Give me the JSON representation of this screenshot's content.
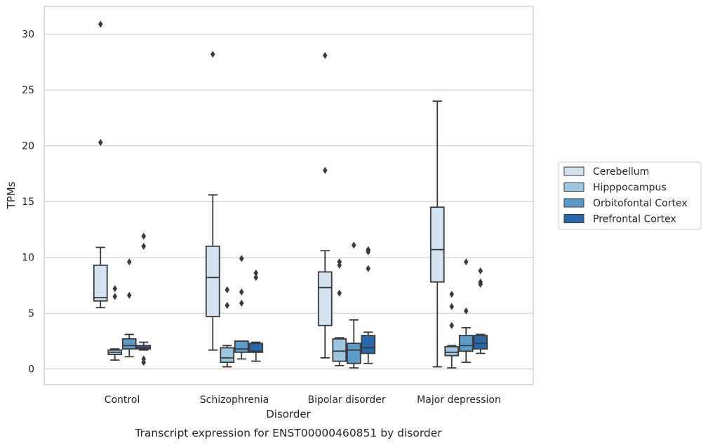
{
  "chart_data": {
    "type": "box",
    "xlabel": "Disorder",
    "ylabel": "TPMs",
    "caption": "Transcript expression for ENST00000460851 by disorder",
    "ylim": [
      -1.4,
      32.5
    ],
    "yticks": [
      0,
      5,
      10,
      15,
      20,
      25,
      30
    ],
    "grid": "horizontal",
    "legend_position": "right",
    "categories": [
      "Control",
      "Schizophrenia",
      "Bipolar disorder",
      "Major depression"
    ],
    "series": [
      {
        "name": "Cerebellum",
        "color": "#d3e3f2",
        "boxes": [
          {
            "q1": 6.1,
            "median": 6.4,
            "q3": 9.3,
            "whisker_low": 5.5,
            "whisker_high": 10.9,
            "outliers": [
              20.3,
              30.9
            ]
          },
          {
            "q1": 4.7,
            "median": 8.2,
            "q3": 11.0,
            "whisker_low": 1.7,
            "whisker_high": 15.6,
            "outliers": [
              28.2
            ]
          },
          {
            "q1": 3.9,
            "median": 7.3,
            "q3": 8.7,
            "whisker_low": 1.0,
            "whisker_high": 10.6,
            "outliers": [
              17.8,
              28.1
            ]
          },
          {
            "q1": 7.8,
            "median": 10.7,
            "q3": 14.5,
            "whisker_low": 0.2,
            "whisker_high": 24.0,
            "outliers": []
          }
        ]
      },
      {
        "name": "Hipppocampus",
        "color": "#9dc7e0",
        "boxes": [
          {
            "q1": 1.3,
            "median": 1.5,
            "q3": 1.7,
            "whisker_low": 0.8,
            "whisker_high": 1.8,
            "outliers": [
              6.5,
              7.2
            ]
          },
          {
            "q1": 0.6,
            "median": 1.0,
            "q3": 1.9,
            "whisker_low": 0.2,
            "whisker_high": 2.1,
            "outliers": [
              5.7,
              7.1
            ]
          },
          {
            "q1": 0.7,
            "median": 1.6,
            "q3": 2.7,
            "whisker_low": 0.3,
            "whisker_high": 2.8,
            "outliers": [
              6.8,
              9.3,
              9.6
            ]
          },
          {
            "q1": 1.2,
            "median": 1.5,
            "q3": 2.0,
            "whisker_low": 0.1,
            "whisker_high": 2.1,
            "outliers": [
              3.9,
              5.6,
              6.7
            ]
          }
        ]
      },
      {
        "name": "Orbitofontal Cortex",
        "color": "#5b9ccb",
        "boxes": [
          {
            "q1": 1.8,
            "median": 2.1,
            "q3": 2.7,
            "whisker_low": 1.1,
            "whisker_high": 3.1,
            "outliers": [
              6.6,
              9.6
            ]
          },
          {
            "q1": 1.5,
            "median": 1.8,
            "q3": 2.5,
            "whisker_low": 0.9,
            "whisker_high": 2.5,
            "outliers": [
              5.9,
              6.9,
              9.9
            ]
          },
          {
            "q1": 0.5,
            "median": 1.7,
            "q3": 2.3,
            "whisker_low": 0.1,
            "whisker_high": 4.4,
            "outliers": [
              11.1
            ]
          },
          {
            "q1": 1.6,
            "median": 2.1,
            "q3": 3.0,
            "whisker_low": 0.6,
            "whisker_high": 3.7,
            "outliers": [
              5.2,
              9.6
            ]
          }
        ]
      },
      {
        "name": "Prefrontal Cortex",
        "color": "#2768ad",
        "boxes": [
          {
            "q1": 1.8,
            "median": 1.9,
            "q3": 2.1,
            "whisker_low": 1.7,
            "whisker_high": 2.4,
            "outliers": [
              0.6,
              0.9,
              11.0,
              11.9
            ]
          },
          {
            "q1": 1.5,
            "median": 1.6,
            "q3": 2.3,
            "whisker_low": 0.7,
            "whisker_high": 2.4,
            "outliers": [
              8.2,
              8.6
            ]
          },
          {
            "q1": 1.4,
            "median": 1.9,
            "q3": 3.0,
            "whisker_low": 0.5,
            "whisker_high": 3.3,
            "outliers": [
              9.0,
              10.5,
              10.7
            ]
          },
          {
            "q1": 1.8,
            "median": 2.3,
            "q3": 3.0,
            "whisker_low": 1.4,
            "whisker_high": 3.1,
            "outliers": [
              7.6,
              7.8,
              8.8
            ]
          }
        ]
      }
    ]
  }
}
